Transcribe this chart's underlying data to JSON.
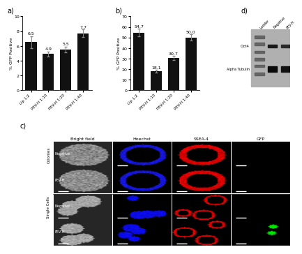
{
  "panel_a": {
    "categories": [
      "Lip 1:2",
      "PEV-H 1:10",
      "PEV-H 1:20",
      "PEV-H 1:40"
    ],
    "values": [
      6.5,
      4.9,
      5.5,
      7.7
    ],
    "errors": [
      0.8,
      0.3,
      0.4,
      0.5
    ],
    "ylabel": "% GFP Positive",
    "ylim": [
      0,
      10
    ],
    "yticks": [
      0,
      2,
      4,
      6,
      8,
      10
    ],
    "label": "a)",
    "bar_color": "#111111"
  },
  "panel_b": {
    "categories": [
      "Lip 1:2",
      "PEV-H 1:10",
      "PEV-H 1:20",
      "PEV-H 1:40"
    ],
    "values": [
      54.7,
      18.1,
      30.7,
      50.0
    ],
    "errors": [
      3.5,
      1.2,
      2.0,
      3.0
    ],
    "ylabel": "% GFP Positive",
    "ylim": [
      0,
      70
    ],
    "yticks": [
      0,
      10,
      20,
      30,
      40,
      50,
      60,
      70
    ],
    "label": "b)",
    "bar_color": "#111111"
  },
  "panel_d": {
    "label": "d)",
    "lane_labels": [
      "Ladder",
      "Negative",
      "PEV-H"
    ],
    "row_labels": [
      "Oct4",
      "Alpha Tubulin"
    ],
    "bg_color": "#c8c8c8"
  },
  "panel_c": {
    "label": "c)",
    "col_headers": [
      "Bright field",
      "Hoechst",
      "SSEA-4",
      "GFP"
    ],
    "row_sub": [
      [
        "Negative",
        "PEV-H"
      ],
      [
        "Negative",
        "PEV-H"
      ]
    ],
    "row_group_labels": [
      "Colonies",
      "Single Cells"
    ]
  }
}
